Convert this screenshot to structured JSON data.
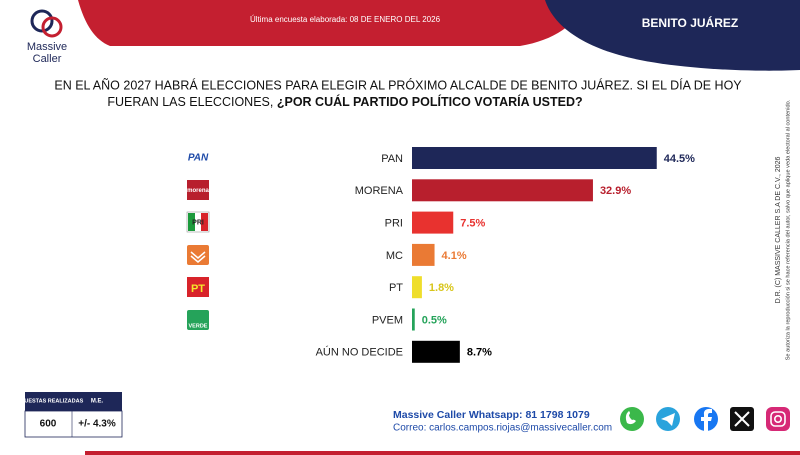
{
  "brand": {
    "line1": "Massive",
    "line2": "Caller"
  },
  "header": {
    "survey_date": "Última encuesta elaborada: 08 DE ENERO DEL 2026",
    "location": "BENITO JUÁREZ"
  },
  "question": {
    "line1": "EN EL AÑO 2027 HABRÁ ELECCIONES PARA ELEGIR AL PRÓXIMO ALCALDE DE BENITO JUÁREZ. SI EL DÍA DE HOY",
    "line2": "FUERAN LAS ELECCIONES, ",
    "line2_bold": "¿POR CUÁL PARTIDO POLÍTICO VOTARÍA USTED?"
  },
  "logos": [
    "PAN",
    "morena",
    "PRI",
    "PT",
    "VERDE"
  ],
  "chart_data": {
    "type": "bar",
    "orientation": "horizontal",
    "categories": [
      "PAN",
      "MORENA",
      "PRI",
      "MC",
      "PT",
      "PVEM",
      "AÚN NO DECIDE"
    ],
    "values": [
      44.5,
      32.9,
      7.5,
      4.1,
      1.8,
      0.5,
      8.7
    ],
    "value_labels": [
      "44.5%",
      "32.9%",
      "7.5%",
      "4.1%",
      "1.8%",
      "0.5%",
      "8.7%"
    ],
    "colors": [
      "#1e2758",
      "#b81f2d",
      "#e8322f",
      "#ea7a34",
      "#efde2b",
      "#25a35a",
      "#000000"
    ]
  },
  "survey_table": {
    "headers": [
      "ENCUESTAS REALIZADAS",
      "M.E."
    ],
    "row": [
      "600",
      "+/- 4.3%"
    ]
  },
  "contact": {
    "whatsapp": "Massive Caller Whatsapp: 81 1798 1079",
    "email": "Correo: carlos.campos.riojas@massivecaller.com"
  },
  "legal": {
    "copyright": "D.R. (C) MASSIVE CALLER S.A DE C.V., 2026",
    "notice": "Se autoriza la reproducción si se hace referencia del autor, salvo que aplique veda electoral al contenido."
  }
}
